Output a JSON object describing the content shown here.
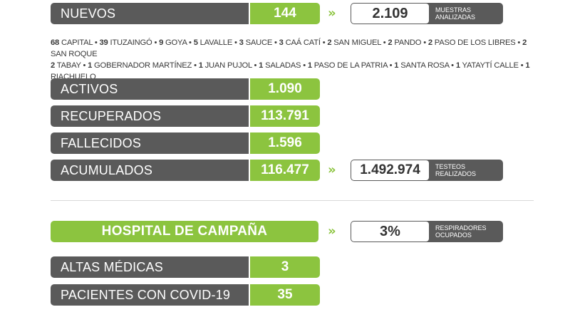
{
  "nuevos": {
    "label": "NUEVOS",
    "value": "144"
  },
  "muestras": {
    "value": "2.109",
    "caption_1": "MUESTRAS",
    "caption_2": "ANALIZADAS"
  },
  "localities": {
    "line1": [
      {
        "n": "68",
        "name": "CAPITAL"
      },
      {
        "n": "39",
        "name": "ITUZAINGÓ"
      },
      {
        "n": "9",
        "name": "GOYA"
      },
      {
        "n": "5",
        "name": "LAVALLE"
      },
      {
        "n": "3",
        "name": "SAUCE"
      },
      {
        "n": "3",
        "name": "CAÁ CATÍ"
      },
      {
        "n": "2",
        "name": "SAN MIGUEL"
      },
      {
        "n": "2",
        "name": "PANDO"
      },
      {
        "n": "2",
        "name": "PASO DE LOS LIBRES"
      },
      {
        "n": "2",
        "name": "SAN ROQUE"
      }
    ],
    "line2": [
      {
        "n": "2",
        "name": "TABAY"
      },
      {
        "n": "1",
        "name": "GOBERNADOR MARTÍNEZ"
      },
      {
        "n": "1",
        "name": "JUAN PUJOL"
      },
      {
        "n": "1",
        "name": "SALADAS"
      },
      {
        "n": "1",
        "name": "PASO DE LA PATRIA"
      },
      {
        "n": "1",
        "name": "SANTA ROSA"
      },
      {
        "n": "1",
        "name": "YATAYTÍ CALLE"
      },
      {
        "n": "1",
        "name": "RIACHUELO"
      }
    ]
  },
  "stats": [
    {
      "label": "ACTIVOS",
      "value": "1.090"
    },
    {
      "label": "RECUPERADOS",
      "value": "113.791"
    },
    {
      "label": "FALLECIDOS",
      "value": "1.596"
    },
    {
      "label": "ACUMULADOS",
      "value": "116.477"
    }
  ],
  "testeos": {
    "value": "1.492.974",
    "caption_1": "TESTEOS",
    "caption_2": "REALIZADOS"
  },
  "hospital": {
    "title": "HOSPITAL DE CAMPAÑA"
  },
  "respiradores": {
    "value": "3%",
    "caption_1": "RESPIRADORES",
    "caption_2": "OCUPADOS"
  },
  "hospital_stats": [
    {
      "label": "ALTAS MÉDICAS",
      "value": "3"
    },
    {
      "label": "PACIENTES CON COVID-19",
      "value": "35"
    }
  ],
  "colors": {
    "gray": "#5a5a5a",
    "green": "#8cc43f",
    "text": "#3a3a3a"
  },
  "icons": {
    "arrow": "double-chevron-right-icon"
  }
}
